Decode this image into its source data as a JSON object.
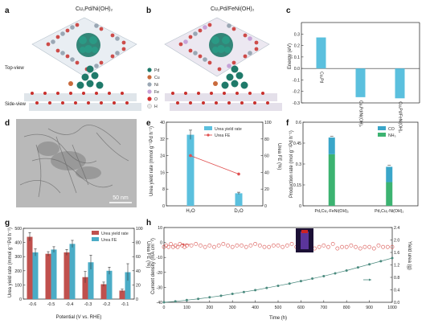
{
  "panels": {
    "a": {
      "label": "a",
      "title": "Cu₁Pd/Ni(OH)₂",
      "top_view_label": "Top-view",
      "side_view_label": "Side-view"
    },
    "b": {
      "label": "b",
      "title": "Cu₁Pd/FeNi(OH)₂",
      "legend": [
        {
          "symbol": "Pd",
          "color": "#1f7a6a"
        },
        {
          "symbol": "Cu",
          "color": "#c96a3c"
        },
        {
          "symbol": "Ni",
          "color": "#9aa7b4"
        },
        {
          "symbol": "Fe",
          "color": "#c7a3d8"
        },
        {
          "symbol": "O",
          "color": "#d32f2f"
        },
        {
          "symbol": "H",
          "color": "#e6e6e6"
        }
      ]
    },
    "d": {
      "label": "d",
      "scale_bar": "50 nm"
    }
  },
  "chart_data": [
    {
      "id": "c",
      "label": "c",
      "type": "bar",
      "ylabel": "Energy (eV)",
      "ylim": [
        -0.3,
        0.4
      ],
      "yticks": [
        -0.3,
        -0.2,
        -0.1,
        0.0,
        0.1,
        0.2,
        0.3
      ],
      "categories": [
        "Cu₁Pd",
        "Cu₁Pd/Ni(OH)₂",
        "Cu₁Pd/FeNi(OH)₂"
      ],
      "values": [
        0.27,
        -0.25,
        -0.26
      ],
      "color": "#5bc0de"
    },
    {
      "id": "e",
      "label": "e",
      "type": "bar+line",
      "ylabel_left": "Urea yield rate (mmol g⁻¹Pd h⁻¹)",
      "ylabel_right": "Urea FE (%)",
      "left_ylim": [
        0,
        40
      ],
      "left_yticks": [
        0,
        8,
        16,
        24,
        32,
        40
      ],
      "right_ylim": [
        0,
        100
      ],
      "right_yticks": [
        0,
        20,
        40,
        60,
        80,
        100
      ],
      "categories": [
        "H₂O",
        "D₂O"
      ],
      "bar_series": {
        "name": "Urea yield rate",
        "values": [
          34,
          6
        ],
        "errors": [
          2.2,
          0.5
        ],
        "color": "#5bc0de"
      },
      "line_series": {
        "name": "Urea FE",
        "values": [
          60,
          38
        ],
        "color": "#e05050"
      }
    },
    {
      "id": "f",
      "label": "f",
      "type": "stacked-bar",
      "ylabel": "Production rate (mol g⁻¹Pd h⁻¹)",
      "ylim": [
        0,
        0.6
      ],
      "yticks": [
        0,
        0.15,
        0.3,
        0.45,
        0.6
      ],
      "categories": [
        "Pd₁Cu₁-FeNi(OH)₂",
        "Pd₁Cu₁-Ni(OH)₂"
      ],
      "series": [
        {
          "name": "NH₃",
          "values": [
            0.37,
            0.17
          ],
          "color": "#3cb371"
        },
        {
          "name": "CO",
          "values": [
            0.12,
            0.11
          ],
          "color": "#3aa6c9"
        }
      ],
      "totals_errors": [
        0.01,
        0.01
      ]
    },
    {
      "id": "g",
      "label": "g",
      "type": "grouped-bar",
      "xlabel": "Potential (V vs. RHE)",
      "ylabel_left": "Urea yield rate (mmol g⁻¹Pd h⁻¹)",
      "ylabel_right": "Urea FE (%)",
      "left_ylim": [
        0,
        500
      ],
      "left_yticks": [
        0,
        100,
        200,
        300,
        400,
        500
      ],
      "right_ylim": [
        0,
        100
      ],
      "right_yticks": [
        0,
        20,
        40,
        60,
        80,
        100
      ],
      "categories": [
        "-0.6",
        "-0.5",
        "-0.4",
        "-0.3",
        "-0.2",
        "-0.1"
      ],
      "series": [
        {
          "name": "Urea yield rate",
          "axis": "left",
          "values": [
            440,
            320,
            330,
            155,
            105,
            60
          ],
          "errors": [
            30,
            15,
            20,
            40,
            15,
            10
          ],
          "color": "#c0504d"
        },
        {
          "name": "Urea FE",
          "axis": "right",
          "values": [
            66,
            70,
            78,
            52,
            40,
            38
          ],
          "errors": [
            5,
            4,
            5,
            10,
            5,
            12
          ],
          "color": "#4bacc6"
        }
      ]
    },
    {
      "id": "h",
      "label": "h",
      "type": "scatter+line",
      "xlabel": "Time (h)",
      "ylabel_left": "Current density (mA cm⁻²)",
      "ylabel_right": "Yield urea (g)",
      "xlim": [
        0,
        1000
      ],
      "xticks": [
        0,
        100,
        200,
        300,
        400,
        500,
        600,
        700,
        800,
        900,
        1000
      ],
      "left_ylim": [
        -40,
        10
      ],
      "left_yticks": [
        -40,
        -30,
        -20,
        -10,
        0,
        10
      ],
      "right_ylim": [
        0,
        2.4
      ],
      "right_yticks": [
        0.0,
        0.4,
        0.8,
        1.2,
        1.6,
        2.0,
        2.4
      ],
      "current_density": {
        "color": "#d9534f",
        "x": [
          0,
          10,
          20,
          30,
          40,
          50,
          60,
          70,
          80,
          90,
          100,
          120,
          140,
          160,
          180,
          200,
          220,
          240,
          260,
          280,
          300,
          320,
          340,
          360,
          380,
          400,
          420,
          440,
          460,
          480,
          500,
          520,
          540,
          560,
          580,
          600,
          620,
          640,
          660,
          680,
          700,
          720,
          740,
          760,
          780,
          800,
          820,
          840,
          860,
          880,
          900,
          920,
          940,
          960,
          980,
          1000
        ],
        "y": [
          -3,
          -2,
          -3,
          -1,
          -3,
          -2,
          -3,
          -1,
          -2,
          -3,
          -2,
          -2,
          -1,
          -2,
          -3,
          -2,
          -3,
          -2,
          -1,
          -2,
          -3,
          -2,
          -2,
          -3,
          -2,
          -1,
          -2,
          -3,
          -3,
          -2,
          -2,
          -3,
          -2,
          -1,
          -3,
          -2,
          -2,
          -3,
          -4,
          -3,
          -2,
          -3,
          -1,
          -4,
          -3,
          -3,
          -2,
          -3,
          -4,
          -3,
          -3,
          -4,
          -2,
          -3,
          -3,
          -3
        ]
      },
      "yield_urea": {
        "color": "#4a8a7e",
        "x": [
          0,
          50,
          100,
          150,
          200,
          250,
          300,
          350,
          400,
          450,
          500,
          550,
          600,
          650,
          700,
          750,
          800,
          850,
          900,
          950,
          1000
        ],
        "y": [
          0.0,
          0.03,
          0.07,
          0.11,
          0.16,
          0.21,
          0.27,
          0.33,
          0.39,
          0.46,
          0.53,
          0.6,
          0.68,
          0.76,
          0.84,
          0.93,
          1.02,
          1.12,
          1.22,
          1.32,
          1.42
        ]
      }
    }
  ]
}
